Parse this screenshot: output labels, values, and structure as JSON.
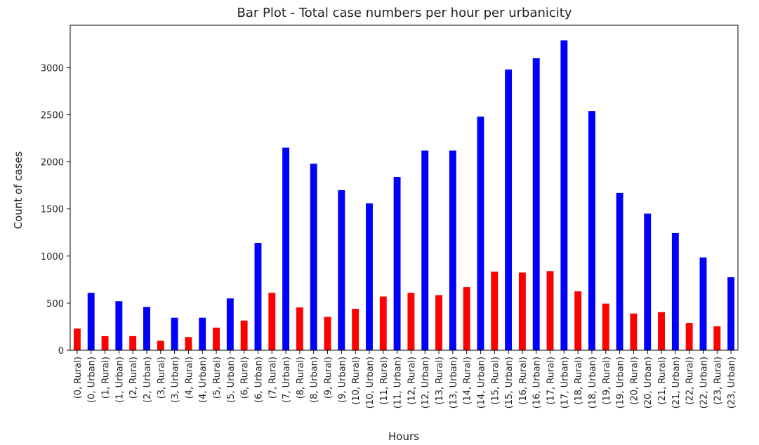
{
  "chart_data": {
    "type": "bar",
    "title": "Bar Plot - Total case numbers per hour per urbanicity",
    "xlabel": "Hours",
    "ylabel": "Count of cases",
    "ylim": [
      0,
      3450
    ],
    "yticks": [
      0,
      500,
      1000,
      1500,
      2000,
      2500,
      3000
    ],
    "grid": false,
    "colors": {
      "Rural": "#ff0000",
      "Urban": "#0000ff"
    },
    "categories": [
      "(0, Rural)",
      "(0, Urban)",
      "(1, Rural)",
      "(1, Urban)",
      "(2, Rural)",
      "(2, Urban)",
      "(3, Rural)",
      "(3, Urban)",
      "(4, Rural)",
      "(4, Urban)",
      "(5, Rural)",
      "(5, Urban)",
      "(6, Rural)",
      "(6, Urban)",
      "(7, Rural)",
      "(7, Urban)",
      "(8, Rural)",
      "(8, Urban)",
      "(9, Rural)",
      "(9, Urban)",
      "(10, Rural)",
      "(10, Urban)",
      "(11, Rural)",
      "(11, Urban)",
      "(12, Rural)",
      "(12, Urban)",
      "(13, Rural)",
      "(13, Urban)",
      "(14, Rural)",
      "(14, Urban)",
      "(15, Rural)",
      "(15, Urban)",
      "(16, Rural)",
      "(16, Urban)",
      "(17, Rural)",
      "(17, Urban)",
      "(18, Rural)",
      "(18, Urban)",
      "(19, Rural)",
      "(19, Urban)",
      "(20, Rural)",
      "(20, Urban)",
      "(21, Rural)",
      "(21, Urban)",
      "(22, Rural)",
      "(22, Urban)",
      "(23, Rural)",
      "(23, Urban)"
    ],
    "values": [
      230,
      610,
      150,
      520,
      150,
      460,
      100,
      345,
      140,
      345,
      240,
      550,
      315,
      1140,
      610,
      2150,
      455,
      1980,
      355,
      1700,
      440,
      1560,
      570,
      1840,
      610,
      2120,
      585,
      2120,
      670,
      2480,
      835,
      2980,
      825,
      3100,
      840,
      3290,
      625,
      2540,
      495,
      1670,
      390,
      1450,
      405,
      1245,
      290,
      985,
      255,
      775
    ]
  }
}
